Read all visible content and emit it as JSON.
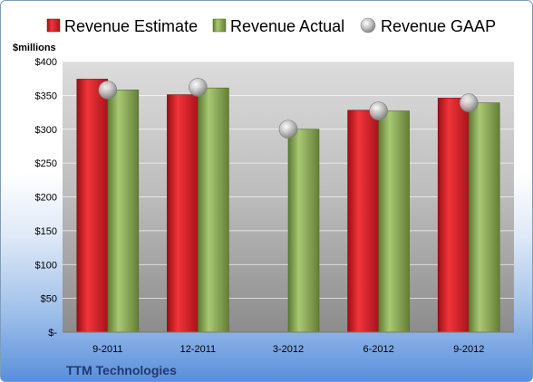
{
  "chart_data": {
    "type": "bar",
    "title": "",
    "company": "TTM Technologies",
    "ylabel": "$millions",
    "ylim": [
      0,
      400
    ],
    "ytick_step": 50,
    "ytick_labels": [
      "$-",
      "$50",
      "$100",
      "$150",
      "$200",
      "$250",
      "$300",
      "$350",
      "$400"
    ],
    "categories": [
      "9-2011",
      "12-2011",
      "3-2012",
      "6-2012",
      "9-2012"
    ],
    "legend_position": "top",
    "grid": true,
    "series": [
      {
        "name": "Revenue Estimate",
        "kind": "bar",
        "color": "#e01b22",
        "values": [
          374,
          351,
          null,
          328,
          346
        ]
      },
      {
        "name": "Revenue Actual",
        "kind": "bar",
        "color": "#8cae55",
        "values": [
          358,
          361,
          300,
          327,
          339
        ]
      },
      {
        "name": "Revenue GAAP",
        "kind": "marker",
        "color": "#b8b8b8",
        "values": [
          358,
          362,
          300,
          327,
          339
        ]
      }
    ]
  }
}
